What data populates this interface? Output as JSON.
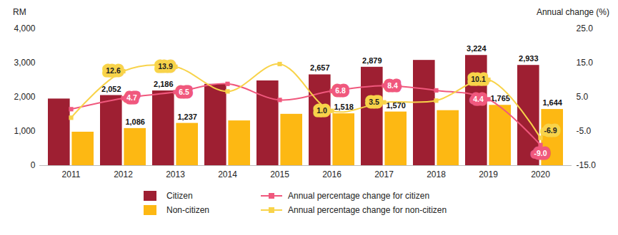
{
  "chart_data": {
    "type": "bar",
    "categories": [
      "2011",
      "2012",
      "2013",
      "2014",
      "2015",
      "2016",
      "2017",
      "2018",
      "2019",
      "2020"
    ],
    "ylabel": "RM",
    "y2label": "Annual change (%)",
    "ylim": [
      0,
      4000
    ],
    "yticks": [
      0,
      {
        "value": 1000,
        "label": "1,000"
      },
      {
        "value": 2000,
        "label": "2,000"
      },
      {
        "value": 3000,
        "label": "3,000"
      },
      {
        "value": 4000,
        "label": "4,000"
      }
    ],
    "y2lim": [
      -15,
      25
    ],
    "y2ticks": [
      {
        "value": -15,
        "label": "-15.0"
      },
      {
        "value": -5,
        "label": "-5.0"
      },
      {
        "value": 5,
        "label": "5.0"
      },
      {
        "value": 15,
        "label": "15.0"
      },
      {
        "value": 25,
        "label": "25.0"
      }
    ],
    "data_labels": true,
    "legend": "bottom",
    "series": [
      {
        "name": "Citizen",
        "type": "bar",
        "color": "#9e1f32",
        "values": [
          1950,
          2052,
          2186,
          2380,
          2480,
          2657,
          2879,
          3080,
          3224,
          2933
        ],
        "value_labels": [
          null,
          "2,052",
          "2,186",
          null,
          null,
          "2,657",
          "2,879",
          null,
          "3,224",
          "2,933"
        ]
      },
      {
        "name": "Non-citizen",
        "type": "bar",
        "color": "#fdb813",
        "values": [
          980,
          1086,
          1237,
          1310,
          1503,
          1518,
          1570,
          1610,
          1765,
          1644
        ],
        "value_labels": [
          null,
          "1,086",
          "1,237",
          null,
          null,
          "1,518",
          "1,570",
          null,
          "1,765",
          "1,644"
        ]
      },
      {
        "name": "Annual percentage change for citizen",
        "type": "line",
        "axis": "y2",
        "color": "#f0587d",
        "marker": "square",
        "values": [
          1.5,
          4.7,
          6.5,
          8.9,
          4.2,
          6.8,
          8.4,
          7.0,
          4.4,
          -9.0
        ],
        "value_labels": [
          null,
          "4.7",
          "6.5",
          null,
          null,
          "6.8",
          "8.4",
          null,
          "4.4",
          "-9.0"
        ]
      },
      {
        "name": "Annual percentage change for non-citizen",
        "type": "line",
        "axis": "y2",
        "color": "#f8d34a",
        "marker": "square",
        "values": [
          -1.0,
          12.6,
          13.9,
          6.7,
          14.7,
          1.0,
          3.5,
          4.0,
          10.1,
          -6.9
        ],
        "value_labels": [
          null,
          "12.6",
          "13.9",
          null,
          null,
          "1.0",
          "3.5",
          null,
          "10.1",
          "-6.9"
        ]
      }
    ]
  }
}
